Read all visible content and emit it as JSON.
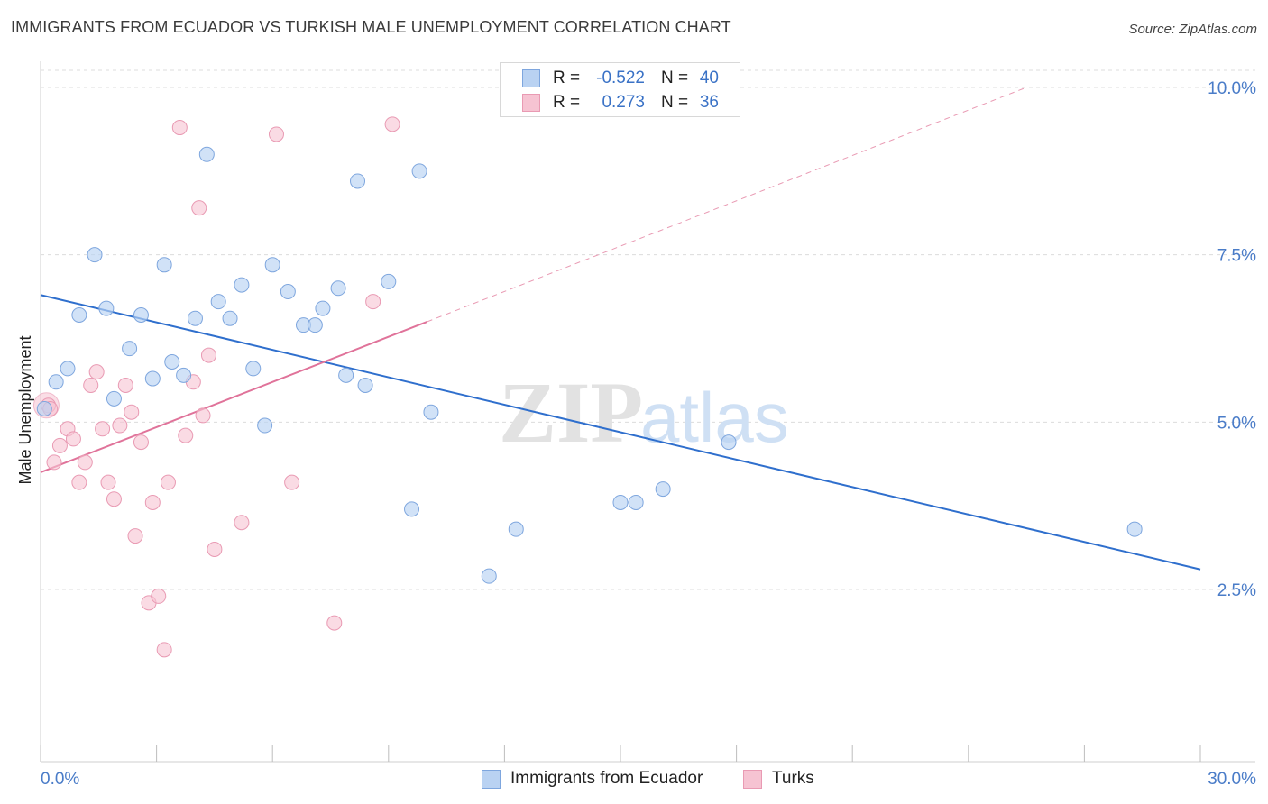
{
  "title": "IMMIGRANTS FROM ECUADOR VS TURKISH MALE UNEMPLOYMENT CORRELATION CHART",
  "source": "Source: ZipAtlas.com",
  "watermark": {
    "zip": "ZIP",
    "atlas": "atlas"
  },
  "colors": {
    "blue_fill": "#b9d2f2",
    "blue_stroke": "#7ea6de",
    "blue_line": "#2f6fcd",
    "pink_fill": "#f6c3d2",
    "pink_stroke": "#e99ab3",
    "pink_line": "#e0739a",
    "grid": "#dcdcdc",
    "tick_text": "#4a7cc8"
  },
  "stats": [
    {
      "series": "Immigrants from Ecuador",
      "r_label": "R =",
      "r_value": "-0.522",
      "n_label": "N =",
      "n_value": "40"
    },
    {
      "series": "Turks",
      "r_label": "R =",
      "r_value": "0.273",
      "n_label": "N =",
      "n_value": "36"
    }
  ],
  "chart_data": {
    "type": "scatter",
    "title": "IMMIGRANTS FROM ECUADOR VS TURKISH MALE UNEMPLOYMENT CORRELATION CHART",
    "xlabel": "",
    "ylabel": "Male Unemployment",
    "xlim": [
      0,
      30
    ],
    "ylim": [
      0,
      10.5
    ],
    "x_tick_labels": [
      {
        "value": 0,
        "label": "0.0%"
      },
      {
        "value": 30,
        "label": "30.0%"
      }
    ],
    "y_tick_labels": [
      {
        "value": 2.5,
        "label": "2.5%"
      },
      {
        "value": 5.0,
        "label": "5.0%"
      },
      {
        "value": 7.5,
        "label": "7.5%"
      },
      {
        "value": 10.0,
        "label": "10.0%"
      }
    ],
    "x_minor_ticks": [
      0,
      3,
      6,
      9,
      12,
      15,
      18,
      21,
      24,
      27,
      30
    ],
    "grid": true,
    "legend_position": "bottom-center",
    "series": [
      {
        "name": "Immigrants from Ecuador",
        "color": "#b9d2f2",
        "points": [
          [
            0.1,
            5.2
          ],
          [
            0.4,
            5.6
          ],
          [
            0.7,
            5.8
          ],
          [
            1.0,
            6.6
          ],
          [
            1.4,
            7.5
          ],
          [
            1.7,
            6.7
          ],
          [
            1.9,
            5.35
          ],
          [
            2.3,
            6.1
          ],
          [
            2.6,
            6.6
          ],
          [
            2.9,
            5.65
          ],
          [
            3.2,
            7.35
          ],
          [
            3.4,
            5.9
          ],
          [
            3.7,
            5.7
          ],
          [
            4.0,
            6.55
          ],
          [
            4.3,
            9.0
          ],
          [
            4.6,
            6.8
          ],
          [
            4.9,
            6.55
          ],
          [
            5.2,
            7.05
          ],
          [
            5.5,
            5.8
          ],
          [
            5.8,
            4.95
          ],
          [
            6.0,
            7.35
          ],
          [
            6.4,
            6.95
          ],
          [
            6.8,
            6.45
          ],
          [
            7.1,
            6.45
          ],
          [
            7.3,
            6.7
          ],
          [
            7.7,
            7.0
          ],
          [
            7.9,
            5.7
          ],
          [
            8.2,
            8.6
          ],
          [
            8.4,
            5.55
          ],
          [
            9.0,
            7.1
          ],
          [
            9.6,
            3.7
          ],
          [
            9.8,
            8.75
          ],
          [
            10.1,
            5.15
          ],
          [
            11.6,
            2.7
          ],
          [
            12.3,
            3.4
          ],
          [
            15.0,
            3.8
          ],
          [
            15.4,
            3.8
          ],
          [
            16.1,
            4.0
          ],
          [
            17.8,
            4.7
          ],
          [
            28.3,
            3.4
          ]
        ],
        "trend": {
          "x": [
            0,
            30
          ],
          "y": [
            6.9,
            2.8
          ],
          "dashed_extension": false
        }
      },
      {
        "name": "Turks",
        "color": "#f6c3d2",
        "points": [
          [
            0.2,
            5.25
          ],
          [
            0.35,
            4.4
          ],
          [
            0.5,
            4.65
          ],
          [
            0.7,
            4.9
          ],
          [
            0.85,
            4.75
          ],
          [
            1.0,
            4.1
          ],
          [
            1.15,
            4.4
          ],
          [
            1.3,
            5.55
          ],
          [
            1.45,
            5.75
          ],
          [
            1.6,
            4.9
          ],
          [
            1.75,
            4.1
          ],
          [
            1.9,
            3.85
          ],
          [
            2.05,
            4.95
          ],
          [
            2.2,
            5.55
          ],
          [
            2.35,
            5.15
          ],
          [
            2.45,
            3.3
          ],
          [
            2.6,
            4.7
          ],
          [
            2.8,
            2.3
          ],
          [
            2.9,
            3.8
          ],
          [
            3.05,
            2.4
          ],
          [
            3.2,
            1.6
          ],
          [
            3.3,
            4.1
          ],
          [
            3.6,
            9.4
          ],
          [
            3.75,
            4.8
          ],
          [
            3.95,
            5.6
          ],
          [
            4.1,
            8.2
          ],
          [
            4.2,
            5.1
          ],
          [
            4.35,
            6.0
          ],
          [
            4.5,
            3.1
          ],
          [
            5.2,
            3.5
          ],
          [
            6.1,
            9.3
          ],
          [
            6.5,
            4.1
          ],
          [
            7.6,
            2.0
          ],
          [
            8.6,
            6.8
          ],
          [
            9.1,
            9.45
          ],
          [
            0.25,
            5.2
          ]
        ],
        "trend": {
          "x": [
            0,
            10.0
          ],
          "y": [
            4.25,
            6.5
          ],
          "dashed_to": [
            25.5,
            10.0
          ]
        }
      }
    ]
  }
}
